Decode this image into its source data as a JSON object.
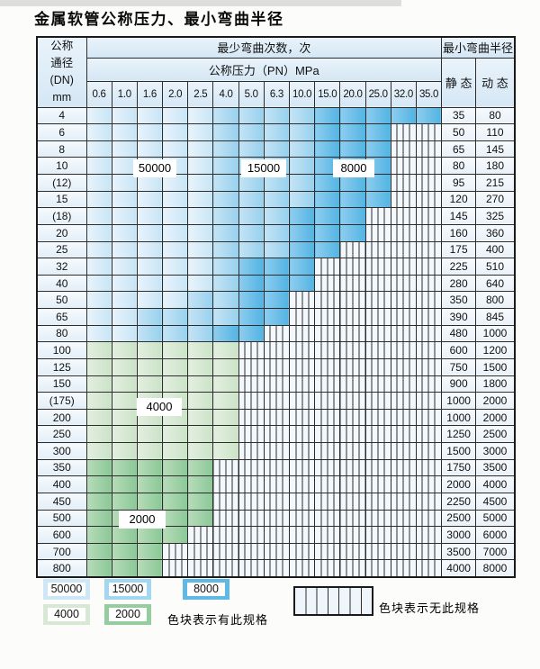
{
  "title": "金属软管公称压力、最小弯曲半径",
  "table": {
    "header": {
      "dn_lines": [
        "公称",
        "通径",
        "(DN)",
        "mm"
      ],
      "bend_cycles_label": "最少弯曲次数，次",
      "pressure_label": "公称压力（PN）MPa",
      "radius_label": "最小弯曲半径",
      "static_label": "静 态",
      "dynamic_label": "动 态",
      "pressures": [
        "0.6",
        "1.0",
        "1.6",
        "2.0",
        "2.5",
        "4.0",
        "5.0",
        "6.3",
        "10.0",
        "15.0",
        "20.0",
        "25.0",
        "32.0",
        "35.0"
      ]
    },
    "rows": [
      {
        "dn": "4",
        "cells": [
          "50000",
          "50000",
          "50000",
          "50000",
          "50000",
          "15000",
          "15000",
          "15000",
          "15000",
          "8000",
          "8000",
          "8000",
          "8000",
          "8000"
        ],
        "static": "35",
        "dynamic": "80"
      },
      {
        "dn": "6",
        "cells": [
          "50000",
          "50000",
          "50000",
          "50000",
          "50000",
          "15000",
          "15000",
          "15000",
          "15000",
          "8000",
          "8000",
          "8000",
          "none",
          "none"
        ],
        "static": "50",
        "dynamic": "110"
      },
      {
        "dn": "8",
        "cells": [
          "50000",
          "50000",
          "50000",
          "50000",
          "50000",
          "15000",
          "15000",
          "15000",
          "15000",
          "8000",
          "8000",
          "8000",
          "none",
          "none"
        ],
        "static": "65",
        "dynamic": "145"
      },
      {
        "dn": "10",
        "cells": [
          "50000",
          "50000",
          "50000",
          "50000",
          "50000",
          "15000",
          "15000",
          "15000",
          "15000",
          "8000",
          "8000",
          "8000",
          "none",
          "none"
        ],
        "static": "80",
        "dynamic": "180"
      },
      {
        "dn": "(12)",
        "cells": [
          "50000",
          "50000",
          "50000",
          "50000",
          "50000",
          "15000",
          "15000",
          "15000",
          "15000",
          "8000",
          "8000",
          "8000",
          "none",
          "none"
        ],
        "static": "95",
        "dynamic": "215"
      },
      {
        "dn": "15",
        "cells": [
          "50000",
          "50000",
          "50000",
          "50000",
          "50000",
          "15000",
          "15000",
          "15000",
          "15000",
          "8000",
          "8000",
          "8000",
          "none",
          "none"
        ],
        "static": "120",
        "dynamic": "270"
      },
      {
        "dn": "(18)",
        "cells": [
          "50000",
          "50000",
          "50000",
          "50000",
          "50000",
          "15000",
          "15000",
          "15000",
          "8000",
          "8000",
          "8000",
          "none",
          "none",
          "none"
        ],
        "static": "145",
        "dynamic": "325"
      },
      {
        "dn": "20",
        "cells": [
          "50000",
          "50000",
          "50000",
          "50000",
          "50000",
          "15000",
          "15000",
          "15000",
          "8000",
          "8000",
          "8000",
          "none",
          "none",
          "none"
        ],
        "static": "160",
        "dynamic": "360"
      },
      {
        "dn": "25",
        "cells": [
          "50000",
          "50000",
          "50000",
          "50000",
          "50000",
          "15000",
          "15000",
          "15000",
          "8000",
          "8000",
          "none",
          "none",
          "none",
          "none"
        ],
        "static": "175",
        "dynamic": "400"
      },
      {
        "dn": "32",
        "cells": [
          "50000",
          "50000",
          "50000",
          "50000",
          "50000",
          "15000",
          "8000",
          "8000",
          "8000",
          "none",
          "none",
          "none",
          "none",
          "none"
        ],
        "static": "225",
        "dynamic": "510"
      },
      {
        "dn": "40",
        "cells": [
          "50000",
          "50000",
          "50000",
          "50000",
          "50000",
          "15000",
          "8000",
          "8000",
          "8000",
          "none",
          "none",
          "none",
          "none",
          "none"
        ],
        "static": "280",
        "dynamic": "640"
      },
      {
        "dn": "50",
        "cells": [
          "50000",
          "50000",
          "50000",
          "50000",
          "15000",
          "15000",
          "8000",
          "8000",
          "none",
          "none",
          "none",
          "none",
          "none",
          "none"
        ],
        "static": "350",
        "dynamic": "800"
      },
      {
        "dn": "65",
        "cells": [
          "50000",
          "50000",
          "15000",
          "15000",
          "15000",
          "15000",
          "8000",
          "8000",
          "none",
          "none",
          "none",
          "none",
          "none",
          "none"
        ],
        "static": "390",
        "dynamic": "845"
      },
      {
        "dn": "80",
        "cells": [
          "50000",
          "50000",
          "15000",
          "15000",
          "15000",
          "8000",
          "8000",
          "none",
          "none",
          "none",
          "none",
          "none",
          "none",
          "none"
        ],
        "static": "480",
        "dynamic": "1000"
      },
      {
        "dn": "100",
        "cells": [
          "4000",
          "4000",
          "4000",
          "4000",
          "4000",
          "4000",
          "none",
          "none",
          "none",
          "none",
          "none",
          "none",
          "none",
          "none"
        ],
        "static": "600",
        "dynamic": "1200"
      },
      {
        "dn": "125",
        "cells": [
          "4000",
          "4000",
          "4000",
          "4000",
          "4000",
          "4000",
          "none",
          "none",
          "none",
          "none",
          "none",
          "none",
          "none",
          "none"
        ],
        "static": "750",
        "dynamic": "1500"
      },
      {
        "dn": "150",
        "cells": [
          "4000",
          "4000",
          "4000",
          "4000",
          "4000",
          "4000",
          "none",
          "none",
          "none",
          "none",
          "none",
          "none",
          "none",
          "none"
        ],
        "static": "900",
        "dynamic": "1800"
      },
      {
        "dn": "(175)",
        "cells": [
          "4000",
          "4000",
          "4000",
          "4000",
          "4000",
          "4000",
          "none",
          "none",
          "none",
          "none",
          "none",
          "none",
          "none",
          "none"
        ],
        "static": "1000",
        "dynamic": "2000"
      },
      {
        "dn": "200",
        "cells": [
          "4000",
          "4000",
          "4000",
          "4000",
          "4000",
          "4000",
          "none",
          "none",
          "none",
          "none",
          "none",
          "none",
          "none",
          "none"
        ],
        "static": "1000",
        "dynamic": "2000"
      },
      {
        "dn": "250",
        "cells": [
          "4000",
          "4000",
          "4000",
          "4000",
          "4000",
          "4000",
          "none",
          "none",
          "none",
          "none",
          "none",
          "none",
          "none",
          "none"
        ],
        "static": "1250",
        "dynamic": "2500"
      },
      {
        "dn": "300",
        "cells": [
          "4000",
          "4000",
          "4000",
          "4000",
          "4000",
          "4000",
          "none",
          "none",
          "none",
          "none",
          "none",
          "none",
          "none",
          "none"
        ],
        "static": "1500",
        "dynamic": "3000"
      },
      {
        "dn": "350",
        "cells": [
          "2000",
          "2000",
          "2000",
          "2000",
          "2000",
          "none",
          "none",
          "none",
          "none",
          "none",
          "none",
          "none",
          "none",
          "none"
        ],
        "static": "1750",
        "dynamic": "3500"
      },
      {
        "dn": "400",
        "cells": [
          "2000",
          "2000",
          "2000",
          "2000",
          "2000",
          "none",
          "none",
          "none",
          "none",
          "none",
          "none",
          "none",
          "none",
          "none"
        ],
        "static": "2000",
        "dynamic": "4000"
      },
      {
        "dn": "450",
        "cells": [
          "2000",
          "2000",
          "2000",
          "2000",
          "2000",
          "none",
          "none",
          "none",
          "none",
          "none",
          "none",
          "none",
          "none",
          "none"
        ],
        "static": "2250",
        "dynamic": "4500"
      },
      {
        "dn": "500",
        "cells": [
          "2000",
          "2000",
          "2000",
          "2000",
          "2000",
          "none",
          "none",
          "none",
          "none",
          "none",
          "none",
          "none",
          "none",
          "none"
        ],
        "static": "2500",
        "dynamic": "5000"
      },
      {
        "dn": "600",
        "cells": [
          "2000",
          "2000",
          "2000",
          "2000",
          "none",
          "none",
          "none",
          "none",
          "none",
          "none",
          "none",
          "none",
          "none",
          "none"
        ],
        "static": "3000",
        "dynamic": "6000"
      },
      {
        "dn": "700",
        "cells": [
          "2000",
          "2000",
          "2000",
          "none",
          "none",
          "none",
          "none",
          "none",
          "none",
          "none",
          "none",
          "none",
          "none",
          "none"
        ],
        "static": "3500",
        "dynamic": "7000"
      },
      {
        "dn": "800",
        "cells": [
          "2000",
          "2000",
          "2000",
          "none",
          "none",
          "none",
          "none",
          "none",
          "none",
          "none",
          "none",
          "none",
          "none",
          "none"
        ],
        "static": "4000",
        "dynamic": "8000"
      }
    ]
  },
  "region_labels": [
    {
      "text": "50000"
    },
    {
      "text": "15000"
    },
    {
      "text": "8000"
    },
    {
      "text": "4000"
    },
    {
      "text": "2000"
    }
  ],
  "legend": {
    "items": [
      {
        "value": "50000"
      },
      {
        "value": "15000"
      },
      {
        "value": "8000"
      },
      {
        "value": "4000"
      },
      {
        "value": "2000"
      }
    ],
    "available_label": "色块表示有此规格",
    "unavailable_label": "色块表示无此规格"
  },
  "colors": {
    "cycles_50000": "#d9ebf8",
    "cycles_15000": "#a8d8f2",
    "cycles_8000": "#5cb8e5",
    "cycles_4000": "#d9e9d6",
    "cycles_2000": "#92cb9e",
    "no_spec_bg": "#f2f7fc",
    "header_bg": "#ddecf8",
    "grid_line": "#2d2d2d"
  }
}
